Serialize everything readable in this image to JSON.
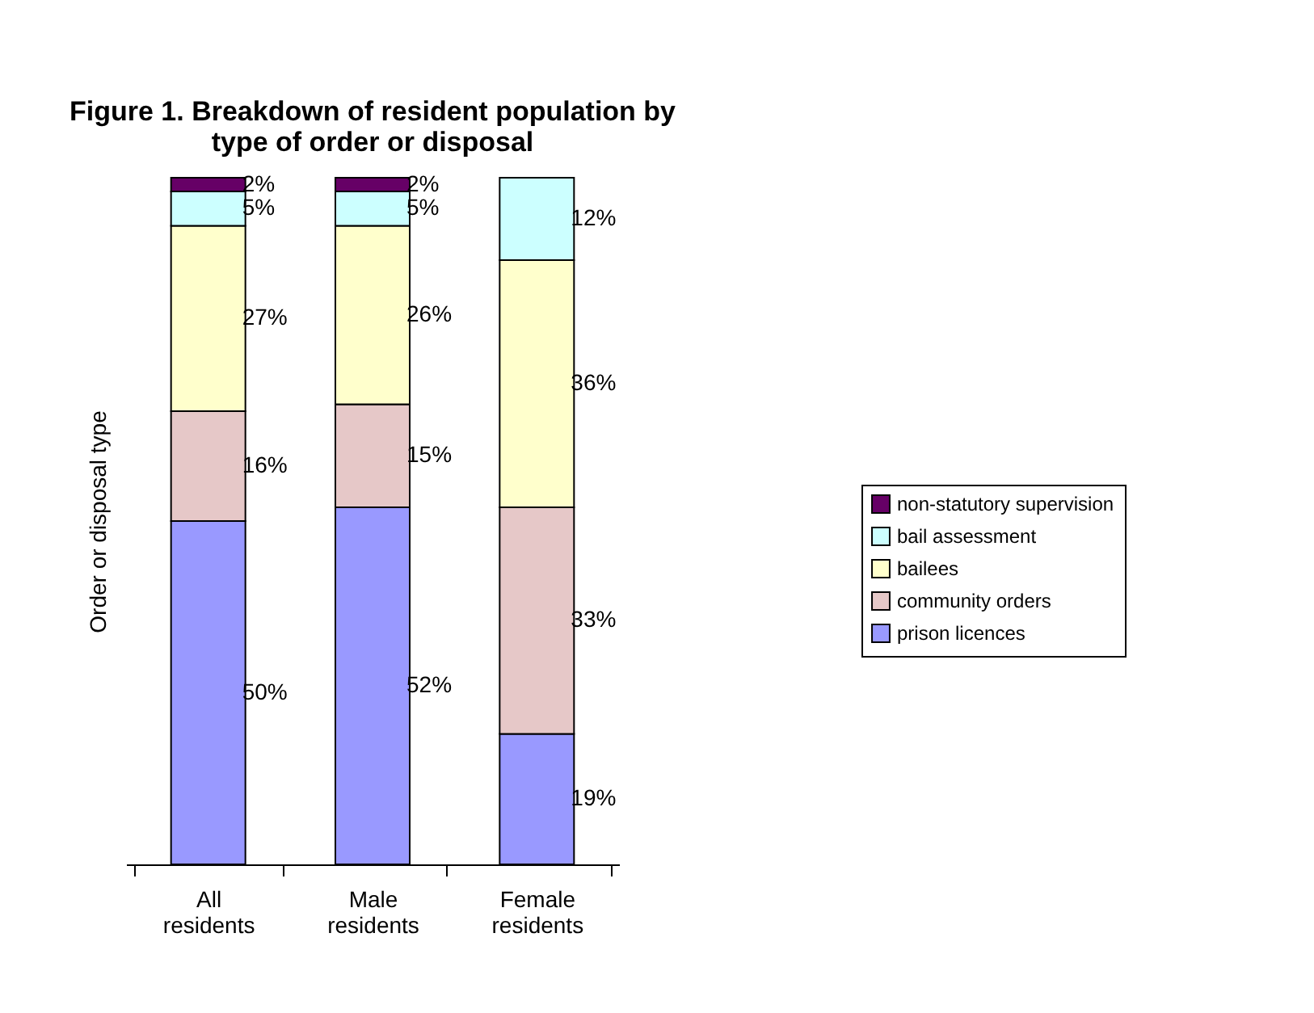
{
  "chart_data": {
    "type": "bar",
    "stacked": true,
    "title": "Figure 1.  Breakdown of resident population by\ntype of order or disposal",
    "ylabel": "Order or disposal type",
    "categories": [
      "All residents",
      "Male residents",
      "Female residents"
    ],
    "series": [
      {
        "name": "prison licences",
        "color": "#9999ff",
        "values": [
          50,
          52,
          19
        ],
        "value_labels": [
          "50%",
          "52%",
          "19%"
        ]
      },
      {
        "name": "community orders",
        "color": "#e6c8c8",
        "values": [
          16,
          15,
          33
        ],
        "value_labels": [
          "16%",
          "15%",
          "33%"
        ]
      },
      {
        "name": "bailees",
        "color": "#ffffcc",
        "values": [
          27,
          26,
          36
        ],
        "value_labels": [
          "27%",
          "26%",
          "36%"
        ]
      },
      {
        "name": "bail assessment",
        "color": "#ccffff",
        "values": [
          5,
          5,
          12
        ],
        "value_labels": [
          "5%",
          "5%",
          "12%"
        ]
      },
      {
        "name": "non-statutory supervision",
        "color": "#660066",
        "values": [
          2,
          2,
          null
        ],
        "value_labels": [
          "2%",
          "2%",
          null
        ]
      }
    ],
    "legend": "right",
    "grid": false
  }
}
